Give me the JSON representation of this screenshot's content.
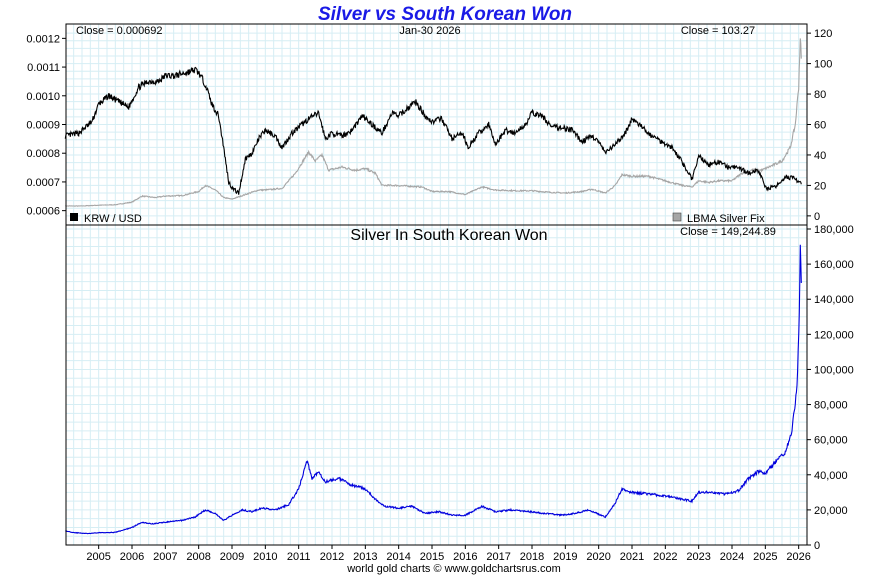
{
  "footer": "world gold charts © www.goldchartsrus.com",
  "chart_data": [
    {
      "type": "line",
      "title": "Silver vs South Korean Won",
      "date_label": "Jan-30  2026",
      "close_left": "Close = 0.000692",
      "close_right": "Close = 103.27",
      "legend_left": "KRW / USD",
      "legend_right": "LBMA Silver Fix",
      "colors": {
        "krw": "#000000",
        "silver": "#a6a6a6",
        "title": "#1a1ae6"
      },
      "y_left": {
        "min": 0.00055,
        "max": 0.00125,
        "ticks": [
          0.0006,
          0.0007,
          0.0008,
          0.0009,
          0.001,
          0.0011,
          0.0012
        ],
        "tick_labels": [
          "0.0006",
          "0.0007",
          "0.0008",
          "0.0009",
          "0.0010",
          "0.0011",
          "0.0012"
        ]
      },
      "y_right": {
        "min": -6,
        "max": 126,
        "ticks": [
          0,
          20,
          40,
          60,
          80,
          100,
          120
        ],
        "tick_labels": [
          "0",
          "20",
          "40",
          "60",
          "80",
          "100",
          "120"
        ]
      },
      "series": [
        {
          "name": "KRW / USD",
          "axis": "left",
          "points": [
            [
              2004.0,
              0.00086
            ],
            [
              2004.4,
              0.00087
            ],
            [
              2004.8,
              0.00091
            ],
            [
              2005.0,
              0.00097
            ],
            [
              2005.3,
              0.001
            ],
            [
              2005.6,
              0.00098
            ],
            [
              2005.9,
              0.00096
            ],
            [
              2006.2,
              0.00103
            ],
            [
              2006.5,
              0.00105
            ],
            [
              2006.8,
              0.00105
            ],
            [
              2007.0,
              0.00107
            ],
            [
              2007.3,
              0.00107
            ],
            [
              2007.6,
              0.00108
            ],
            [
              2007.9,
              0.00109
            ],
            [
              2008.0,
              0.00108
            ],
            [
              2008.2,
              0.00104
            ],
            [
              2008.4,
              0.00097
            ],
            [
              2008.6,
              0.00093
            ],
            [
              2008.75,
              0.00082
            ],
            [
              2008.9,
              0.0007
            ],
            [
              2009.0,
              0.00068
            ],
            [
              2009.2,
              0.00066
            ],
            [
              2009.4,
              0.00078
            ],
            [
              2009.6,
              0.0008
            ],
            [
              2009.8,
              0.00085
            ],
            [
              2010.0,
              0.00088
            ],
            [
              2010.3,
              0.00086
            ],
            [
              2010.5,
              0.00082
            ],
            [
              2010.8,
              0.00087
            ],
            [
              2011.0,
              0.00089
            ],
            [
              2011.3,
              0.00092
            ],
            [
              2011.6,
              0.00094
            ],
            [
              2011.8,
              0.00085
            ],
            [
              2012.0,
              0.00087
            ],
            [
              2012.3,
              0.00086
            ],
            [
              2012.6,
              0.00088
            ],
            [
              2012.9,
              0.00093
            ],
            [
              2013.2,
              0.0009
            ],
            [
              2013.5,
              0.00087
            ],
            [
              2013.8,
              0.00094
            ],
            [
              2014.0,
              0.00093
            ],
            [
              2014.3,
              0.00096
            ],
            [
              2014.5,
              0.00098
            ],
            [
              2014.8,
              0.00093
            ],
            [
              2015.0,
              0.00091
            ],
            [
              2015.3,
              0.00092
            ],
            [
              2015.6,
              0.00085
            ],
            [
              2015.9,
              0.00087
            ],
            [
              2016.1,
              0.00082
            ],
            [
              2016.4,
              0.00087
            ],
            [
              2016.7,
              0.0009
            ],
            [
              2016.9,
              0.00083
            ],
            [
              2017.2,
              0.00088
            ],
            [
              2017.5,
              0.00087
            ],
            [
              2017.8,
              0.0009
            ],
            [
              2018.0,
              0.00094
            ],
            [
              2018.3,
              0.00093
            ],
            [
              2018.6,
              0.00089
            ],
            [
              2018.9,
              0.00089
            ],
            [
              2019.2,
              0.00088
            ],
            [
              2019.5,
              0.00084
            ],
            [
              2019.8,
              0.00086
            ],
            [
              2020.0,
              0.00084
            ],
            [
              2020.2,
              0.0008
            ],
            [
              2020.5,
              0.00083
            ],
            [
              2020.8,
              0.00087
            ],
            [
              2021.0,
              0.00092
            ],
            [
              2021.3,
              0.00089
            ],
            [
              2021.6,
              0.00086
            ],
            [
              2021.9,
              0.00084
            ],
            [
              2022.2,
              0.00082
            ],
            [
              2022.5,
              0.00077
            ],
            [
              2022.8,
              0.00071
            ],
            [
              2023.0,
              0.00079
            ],
            [
              2023.3,
              0.00076
            ],
            [
              2023.6,
              0.00077
            ],
            [
              2023.9,
              0.00075
            ],
            [
              2024.2,
              0.00075
            ],
            [
              2024.5,
              0.00073
            ],
            [
              2024.8,
              0.00074
            ],
            [
              2025.0,
              0.00068
            ],
            [
              2025.3,
              0.00068
            ],
            [
              2025.6,
              0.00072
            ],
            [
              2025.9,
              0.00071
            ],
            [
              2026.08,
              0.000692
            ]
          ]
        },
        {
          "name": "LBMA Silver Fix",
          "axis": "right",
          "points": [
            [
              2004.0,
              6.5
            ],
            [
              2004.5,
              6.5
            ],
            [
              2005.0,
              7.0
            ],
            [
              2005.5,
              7.3
            ],
            [
              2006.0,
              9.0
            ],
            [
              2006.3,
              13.0
            ],
            [
              2006.7,
              12.0
            ],
            [
              2007.0,
              13.0
            ],
            [
              2007.5,
              13.3
            ],
            [
              2008.0,
              16.0
            ],
            [
              2008.2,
              20.0
            ],
            [
              2008.5,
              17.0
            ],
            [
              2008.75,
              12.0
            ],
            [
              2009.0,
              11.0
            ],
            [
              2009.4,
              14.0
            ],
            [
              2009.8,
              17.0
            ],
            [
              2010.0,
              17.0
            ],
            [
              2010.5,
              18.0
            ],
            [
              2010.9,
              28.0
            ],
            [
              2011.3,
              42.0
            ],
            [
              2011.5,
              36.0
            ],
            [
              2011.7,
              40.0
            ],
            [
              2011.9,
              30.0
            ],
            [
              2012.3,
              32.0
            ],
            [
              2012.7,
              30.0
            ],
            [
              2013.0,
              31.0
            ],
            [
              2013.3,
              28.0
            ],
            [
              2013.5,
              20.0
            ],
            [
              2013.9,
              20.0
            ],
            [
              2014.3,
              19.5
            ],
            [
              2014.7,
              19.0
            ],
            [
              2015.0,
              16.0
            ],
            [
              2015.5,
              16.0
            ],
            [
              2016.0,
              14.0
            ],
            [
              2016.5,
              19.0
            ],
            [
              2016.9,
              17.0
            ],
            [
              2017.5,
              16.5
            ],
            [
              2018.0,
              16.5
            ],
            [
              2018.5,
              15.5
            ],
            [
              2019.0,
              15.0
            ],
            [
              2019.5,
              16.0
            ],
            [
              2019.8,
              17.5
            ],
            [
              2020.2,
              15.0
            ],
            [
              2020.5,
              20.0
            ],
            [
              2020.7,
              27.0
            ],
            [
              2021.0,
              26.0
            ],
            [
              2021.5,
              26.0
            ],
            [
              2022.0,
              23.0
            ],
            [
              2022.5,
              20.0
            ],
            [
              2022.8,
              19.0
            ],
            [
              2023.0,
              23.0
            ],
            [
              2023.3,
              22.0
            ],
            [
              2023.6,
              23.0
            ],
            [
              2024.0,
              23.0
            ],
            [
              2024.3,
              28.0
            ],
            [
              2024.6,
              30.0
            ],
            [
              2024.9,
              30.0
            ],
            [
              2025.2,
              33.0
            ],
            [
              2025.5,
              36.0
            ],
            [
              2025.75,
              45.0
            ],
            [
              2025.9,
              60.0
            ],
            [
              2026.0,
              85.0
            ],
            [
              2026.05,
              118.0
            ],
            [
              2026.08,
              103.27
            ]
          ]
        }
      ]
    },
    {
      "type": "line",
      "title": "Silver In South Korean Won",
      "close_label": "Close = 149,244.89",
      "color": "#0000dd",
      "x_ticks": [
        2005,
        2006,
        2007,
        2008,
        2009,
        2010,
        2011,
        2012,
        2013,
        2014,
        2015,
        2016,
        2017,
        2018,
        2019,
        2020,
        2021,
        2022,
        2023,
        2024,
        2025,
        2026
      ],
      "x_tick_labels": [
        "2005",
        "2006",
        "2007",
        "2008",
        "2009",
        "2010",
        "2011",
        "2012",
        "2013",
        "2014",
        "2015",
        "2016",
        "2017",
        "2018",
        "2019",
        "2020",
        "2021",
        "2022",
        "2023",
        "2024",
        "2025",
        "2026"
      ],
      "x_range": [
        2004.02,
        2026.25
      ],
      "y_range": [
        0,
        180000
      ],
      "y_ticks": [
        0,
        20000,
        40000,
        60000,
        80000,
        100000,
        120000,
        140000,
        160000,
        180000
      ],
      "y_tick_labels": [
        "0",
        "20,000",
        "40,000",
        "60,000",
        "80,000",
        "100,000",
        "120,000",
        "140,000",
        "160,000",
        "180,000"
      ],
      "series": [
        {
          "name": "Silver In South Korean Won",
          "points": [
            [
              2004.0,
              8000
            ],
            [
              2004.3,
              7000
            ],
            [
              2004.7,
              6500
            ],
            [
              2005.0,
              7000
            ],
            [
              2005.5,
              7200
            ],
            [
              2006.0,
              10000
            ],
            [
              2006.3,
              13000
            ],
            [
              2006.6,
              12000
            ],
            [
              2007.0,
              13000
            ],
            [
              2007.5,
              14000
            ],
            [
              2007.9,
              16000
            ],
            [
              2008.2,
              20000
            ],
            [
              2008.5,
              18000
            ],
            [
              2008.75,
              14000
            ],
            [
              2009.0,
              17000
            ],
            [
              2009.3,
              20000
            ],
            [
              2009.6,
              19000
            ],
            [
              2009.9,
              21000
            ],
            [
              2010.3,
              20000
            ],
            [
              2010.7,
              23000
            ],
            [
              2011.0,
              32000
            ],
            [
              2011.25,
              48000
            ],
            [
              2011.4,
              38000
            ],
            [
              2011.6,
              42000
            ],
            [
              2011.8,
              36000
            ],
            [
              2012.2,
              38000
            ],
            [
              2012.6,
              34000
            ],
            [
              2013.0,
              32000
            ],
            [
              2013.3,
              26000
            ],
            [
              2013.6,
              22000
            ],
            [
              2014.0,
              21000
            ],
            [
              2014.4,
              22000
            ],
            [
              2014.8,
              18000
            ],
            [
              2015.2,
              19000
            ],
            [
              2015.6,
              17000
            ],
            [
              2016.0,
              17000
            ],
            [
              2016.5,
              22000
            ],
            [
              2016.9,
              19000
            ],
            [
              2017.4,
              20000
            ],
            [
              2017.9,
              19000
            ],
            [
              2018.4,
              18000
            ],
            [
              2018.9,
              17000
            ],
            [
              2019.3,
              18000
            ],
            [
              2019.7,
              20000
            ],
            [
              2020.2,
              16000
            ],
            [
              2020.5,
              24000
            ],
            [
              2020.7,
              32000
            ],
            [
              2021.0,
              30000
            ],
            [
              2021.5,
              29000
            ],
            [
              2022.0,
              28000
            ],
            [
              2022.5,
              26000
            ],
            [
              2022.8,
              25000
            ],
            [
              2023.0,
              30000
            ],
            [
              2023.4,
              30000
            ],
            [
              2023.8,
              29000
            ],
            [
              2024.2,
              31000
            ],
            [
              2024.5,
              38000
            ],
            [
              2024.8,
              42000
            ],
            [
              2025.0,
              41000
            ],
            [
              2025.3,
              47000
            ],
            [
              2025.6,
              53000
            ],
            [
              2025.8,
              65000
            ],
            [
              2025.95,
              90000
            ],
            [
              2026.02,
              130000
            ],
            [
              2026.05,
              170000
            ],
            [
              2026.08,
              149244.89
            ]
          ]
        }
      ]
    }
  ]
}
